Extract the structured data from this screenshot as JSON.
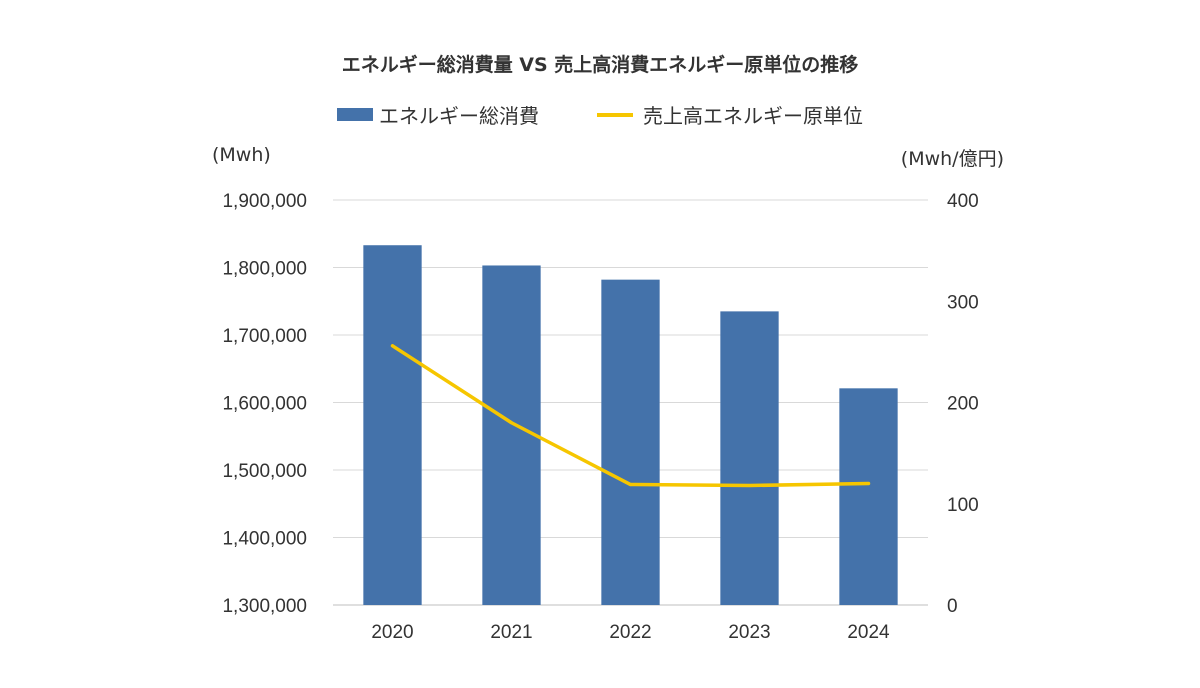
{
  "chart_data": {
    "type": "bar",
    "title": "エネルギー総消費量 VS 売上高消費エネルギー原単位の推移",
    "categories": [
      "2020",
      "2021",
      "2022",
      "2023",
      "2024"
    ],
    "series": [
      {
        "name": "エネルギー総消費",
        "type": "bar",
        "axis": "left",
        "color": "#4472aa",
        "values": [
          1833000,
          1803000,
          1782000,
          1735000,
          1621000
        ]
      },
      {
        "name": "売上高エネルギー原単位",
        "type": "line",
        "axis": "right",
        "color": "#f6c600",
        "values": [
          256,
          180,
          119,
          118,
          120
        ]
      }
    ],
    "y_left": {
      "label": "(Mwh)",
      "ylim": [
        1300000,
        1900000
      ],
      "tick_labels": [
        "1,900,000",
        "1,800,000",
        "1,700,000",
        "1,600,000",
        "1,500,000",
        "1,400,000",
        "1,300,000"
      ]
    },
    "y_right": {
      "label": "(Mwh/億円)",
      "ylim": [
        0,
        400
      ],
      "tick_labels": [
        "400",
        "300",
        "200",
        "100",
        "0"
      ]
    },
    "grid": true,
    "legend_position": "top"
  }
}
